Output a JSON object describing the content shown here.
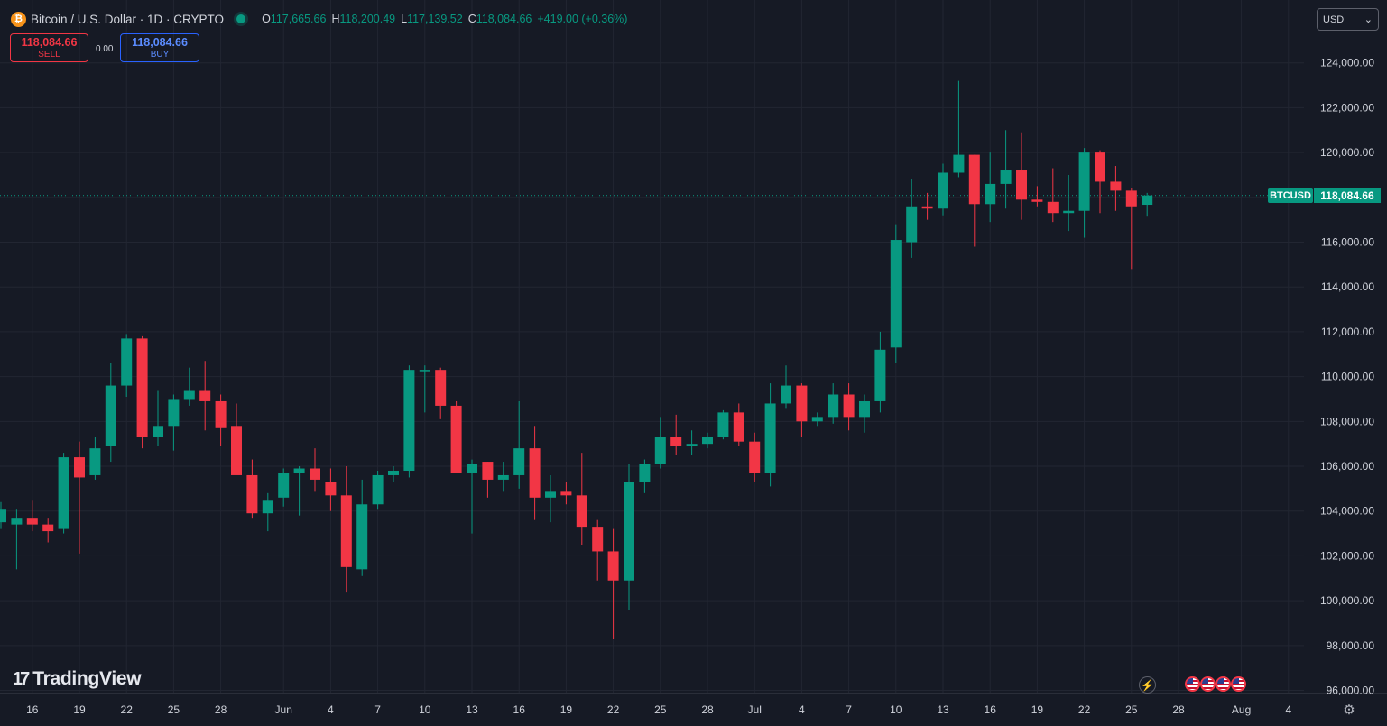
{
  "header": {
    "logo_glyph": "₿",
    "title": "Bitcoin / U.S. Dollar · 1D · CRYPTO",
    "ohlc": [
      {
        "key": "O",
        "value": "117,665.66"
      },
      {
        "key": "H",
        "value": "118,200.49"
      },
      {
        "key": "L",
        "value": "117,139.52"
      },
      {
        "key": "C",
        "value": "118,084.66"
      }
    ],
    "change": "+419.00 (+0.36%)"
  },
  "trade": {
    "sell_price": "118,084.66",
    "sell_label": "SELL",
    "spread": "0.00",
    "buy_price": "118,084.66",
    "buy_label": "BUY"
  },
  "currency_selector": {
    "value": "USD",
    "icon": "chevron-down-icon"
  },
  "price_tag": {
    "symbol": "BTCUSD",
    "price": "118,084.66"
  },
  "branding": {
    "logo_mark": "17",
    "logo_text": "TradingView"
  },
  "colors": {
    "up": "#089981",
    "down": "#f23645",
    "background": "#161a25",
    "grid": "#222632",
    "text": "#d1d4dc"
  },
  "chart_data": {
    "type": "candlestick",
    "y_ticks": [
      "96,000.00",
      "98,000.00",
      "100,000.00",
      "102,000.00",
      "104,000.00",
      "106,000.00",
      "108,000.00",
      "110,000.00",
      "112,000.00",
      "114,000.00",
      "116,000.00",
      "118,000.00",
      "120,000.00",
      "122,000.00",
      "124,000.00"
    ],
    "y_tick_values": [
      96000,
      98000,
      100000,
      102000,
      104000,
      106000,
      108000,
      110000,
      112000,
      114000,
      116000,
      118000,
      120000,
      122000,
      124000
    ],
    "ylim": [
      95900,
      125800
    ],
    "x_ticks": [
      {
        "label": "16",
        "day": "May 16"
      },
      {
        "label": "19",
        "day": "May 19"
      },
      {
        "label": "22",
        "day": "May 22"
      },
      {
        "label": "25",
        "day": "May 25"
      },
      {
        "label": "28",
        "day": "May 28"
      },
      {
        "label": "Jun",
        "day": "Jun 1"
      },
      {
        "label": "4",
        "day": "Jun 4"
      },
      {
        "label": "7",
        "day": "Jun 7"
      },
      {
        "label": "10",
        "day": "Jun 10"
      },
      {
        "label": "13",
        "day": "Jun 13"
      },
      {
        "label": "16",
        "day": "Jun 16"
      },
      {
        "label": "19",
        "day": "Jun 19"
      },
      {
        "label": "22",
        "day": "Jun 22"
      },
      {
        "label": "25",
        "day": "Jun 25"
      },
      {
        "label": "28",
        "day": "Jun 28"
      },
      {
        "label": "Jul",
        "day": "Jul 1"
      },
      {
        "label": "4",
        "day": "Jul 4"
      },
      {
        "label": "7",
        "day": "Jul 7"
      },
      {
        "label": "10",
        "day": "Jul 10"
      },
      {
        "label": "13",
        "day": "Jul 13"
      },
      {
        "label": "16",
        "day": "Jul 16"
      },
      {
        "label": "19",
        "day": "Jul 19"
      },
      {
        "label": "22",
        "day": "Jul 22"
      },
      {
        "label": "25",
        "day": "Jul 25"
      },
      {
        "label": "28",
        "day": "Jul 28"
      },
      {
        "label": "Aug",
        "day": "Aug 1"
      },
      {
        "label": "4",
        "day": "Aug 4"
      }
    ],
    "last_price": 118084.66,
    "candles": [
      {
        "date": "May 14",
        "o": 103500,
        "h": 104400,
        "l": 103200,
        "c": 104100
      },
      {
        "date": "May 15",
        "o": 103400,
        "h": 104100,
        "l": 101400,
        "c": 103700
      },
      {
        "date": "May 16",
        "o": 103700,
        "h": 104500,
        "l": 103100,
        "c": 103400
      },
      {
        "date": "May 17",
        "o": 103400,
        "h": 103700,
        "l": 102600,
        "c": 103100
      },
      {
        "date": "May 18",
        "o": 103200,
        "h": 106600,
        "l": 103000,
        "c": 106400
      },
      {
        "date": "May 19",
        "o": 106400,
        "h": 107100,
        "l": 102100,
        "c": 105500
      },
      {
        "date": "May 20",
        "o": 105600,
        "h": 107300,
        "l": 105400,
        "c": 106800
      },
      {
        "date": "May 21",
        "o": 106900,
        "h": 110600,
        "l": 106200,
        "c": 109600
      },
      {
        "date": "May 22",
        "o": 109600,
        "h": 111900,
        "l": 109100,
        "c": 111700
      },
      {
        "date": "May 23",
        "o": 111700,
        "h": 111800,
        "l": 106800,
        "c": 107300
      },
      {
        "date": "May 24",
        "o": 107300,
        "h": 109400,
        "l": 106900,
        "c": 107800
      },
      {
        "date": "May 25",
        "o": 107800,
        "h": 109200,
        "l": 106700,
        "c": 109000
      },
      {
        "date": "May 26",
        "o": 109000,
        "h": 110400,
        "l": 108700,
        "c": 109400
      },
      {
        "date": "May 27",
        "o": 109400,
        "h": 110700,
        "l": 107600,
        "c": 108900
      },
      {
        "date": "May 28",
        "o": 108900,
        "h": 109200,
        "l": 106900,
        "c": 107700
      },
      {
        "date": "May 29",
        "o": 107800,
        "h": 108800,
        "l": 105700,
        "c": 105600
      },
      {
        "date": "May 30",
        "o": 105600,
        "h": 106300,
        "l": 103700,
        "c": 103900
      },
      {
        "date": "May 31",
        "o": 103900,
        "h": 104800,
        "l": 103100,
        "c": 104500
      },
      {
        "date": "Jun 1",
        "o": 104600,
        "h": 105900,
        "l": 104200,
        "c": 105700
      },
      {
        "date": "Jun 2",
        "o": 105700,
        "h": 106000,
        "l": 103800,
        "c": 105900
      },
      {
        "date": "Jun 3",
        "o": 105900,
        "h": 106800,
        "l": 104900,
        "c": 105400
      },
      {
        "date": "Jun 4",
        "o": 105300,
        "h": 105900,
        "l": 104000,
        "c": 104700
      },
      {
        "date": "Jun 5",
        "o": 104700,
        "h": 106000,
        "l": 100400,
        "c": 101500
      },
      {
        "date": "Jun 6",
        "o": 101400,
        "h": 105400,
        "l": 101100,
        "c": 104300
      },
      {
        "date": "Jun 7",
        "o": 104300,
        "h": 105800,
        "l": 104100,
        "c": 105600
      },
      {
        "date": "Jun 8",
        "o": 105600,
        "h": 106000,
        "l": 105300,
        "c": 105800
      },
      {
        "date": "Jun 9",
        "o": 105800,
        "h": 110500,
        "l": 105500,
        "c": 110300
      },
      {
        "date": "Jun 10",
        "o": 110300,
        "h": 110500,
        "l": 108400,
        "c": 110300
      },
      {
        "date": "Jun 11",
        "o": 110300,
        "h": 110400,
        "l": 108100,
        "c": 108700
      },
      {
        "date": "Jun 12",
        "o": 108700,
        "h": 108900,
        "l": 105700,
        "c": 105700
      },
      {
        "date": "Jun 13",
        "o": 105700,
        "h": 106300,
        "l": 103000,
        "c": 106100
      },
      {
        "date": "Jun 14",
        "o": 106200,
        "h": 106200,
        "l": 104600,
        "c": 105400
      },
      {
        "date": "Jun 15",
        "o": 105400,
        "h": 106200,
        "l": 104900,
        "c": 105600
      },
      {
        "date": "Jun 16",
        "o": 105600,
        "h": 108900,
        "l": 105000,
        "c": 106800
      },
      {
        "date": "Jun 17",
        "o": 106800,
        "h": 107800,
        "l": 103600,
        "c": 104600
      },
      {
        "date": "Jun 18",
        "o": 104600,
        "h": 105600,
        "l": 103500,
        "c": 104900
      },
      {
        "date": "Jun 19",
        "o": 104900,
        "h": 105300,
        "l": 104300,
        "c": 104700
      },
      {
        "date": "Jun 20",
        "o": 104700,
        "h": 106600,
        "l": 102500,
        "c": 103300
      },
      {
        "date": "Jun 21",
        "o": 103300,
        "h": 103600,
        "l": 100900,
        "c": 102200
      },
      {
        "date": "Jun 22",
        "o": 102200,
        "h": 103200,
        "l": 98300,
        "c": 100900
      },
      {
        "date": "Jun 23",
        "o": 100900,
        "h": 106100,
        "l": 99600,
        "c": 105300
      },
      {
        "date": "Jun 24",
        "o": 105300,
        "h": 106300,
        "l": 104800,
        "c": 106100
      },
      {
        "date": "Jun 25",
        "o": 106100,
        "h": 108200,
        "l": 105900,
        "c": 107300
      },
      {
        "date": "Jun 26",
        "o": 107300,
        "h": 108300,
        "l": 106500,
        "c": 106900
      },
      {
        "date": "Jun 27",
        "o": 106900,
        "h": 107600,
        "l": 106500,
        "c": 107000
      },
      {
        "date": "Jun 28",
        "o": 107000,
        "h": 107500,
        "l": 106800,
        "c": 107300
      },
      {
        "date": "Jun 29",
        "o": 107300,
        "h": 108500,
        "l": 107200,
        "c": 108400
      },
      {
        "date": "Jun 30",
        "o": 108400,
        "h": 108800,
        "l": 106900,
        "c": 107100
      },
      {
        "date": "Jul 1",
        "o": 107100,
        "h": 107500,
        "l": 105300,
        "c": 105700
      },
      {
        "date": "Jul 2",
        "o": 105700,
        "h": 109700,
        "l": 105100,
        "c": 108800
      },
      {
        "date": "Jul 3",
        "o": 108800,
        "h": 110500,
        "l": 108600,
        "c": 109600
      },
      {
        "date": "Jul 4",
        "o": 109600,
        "h": 109700,
        "l": 107300,
        "c": 108000
      },
      {
        "date": "Jul 5",
        "o": 108000,
        "h": 108400,
        "l": 107800,
        "c": 108200
      },
      {
        "date": "Jul 6",
        "o": 108200,
        "h": 109700,
        "l": 107900,
        "c": 109200
      },
      {
        "date": "Jul 7",
        "o": 109200,
        "h": 109700,
        "l": 107600,
        "c": 108200
      },
      {
        "date": "Jul 8",
        "o": 108200,
        "h": 109200,
        "l": 107500,
        "c": 108900
      },
      {
        "date": "Jul 9",
        "o": 108900,
        "h": 112000,
        "l": 108400,
        "c": 111200
      },
      {
        "date": "Jul 10",
        "o": 111300,
        "h": 116800,
        "l": 110600,
        "c": 116100
      },
      {
        "date": "Jul 11",
        "o": 116000,
        "h": 118800,
        "l": 115300,
        "c": 117600
      },
      {
        "date": "Jul 12",
        "o": 117600,
        "h": 118200,
        "l": 117000,
        "c": 117500
      },
      {
        "date": "Jul 13",
        "o": 117500,
        "h": 119500,
        "l": 117200,
        "c": 119100
      },
      {
        "date": "Jul 14",
        "o": 119100,
        "h": 123200,
        "l": 118900,
        "c": 119900
      },
      {
        "date": "Jul 15",
        "o": 119900,
        "h": 119900,
        "l": 115800,
        "c": 117700
      },
      {
        "date": "Jul 16",
        "o": 117700,
        "h": 120000,
        "l": 116900,
        "c": 118600
      },
      {
        "date": "Jul 17",
        "o": 118600,
        "h": 121000,
        "l": 117500,
        "c": 119200
      },
      {
        "date": "Jul 18",
        "o": 119200,
        "h": 120900,
        "l": 117000,
        "c": 117900
      },
      {
        "date": "Jul 19",
        "o": 117900,
        "h": 118500,
        "l": 117600,
        "c": 117800
      },
      {
        "date": "Jul 20",
        "o": 117800,
        "h": 119300,
        "l": 116900,
        "c": 117300
      },
      {
        "date": "Jul 21",
        "o": 117300,
        "h": 119000,
        "l": 116500,
        "c": 117400
      },
      {
        "date": "Jul 22",
        "o": 117400,
        "h": 120200,
        "l": 116200,
        "c": 120000
      },
      {
        "date": "Jul 23",
        "o": 120000,
        "h": 120100,
        "l": 117300,
        "c": 118700
      },
      {
        "date": "Jul 24",
        "o": 118700,
        "h": 119400,
        "l": 117400,
        "c": 118300
      },
      {
        "date": "Jul 25",
        "o": 118300,
        "h": 118400,
        "l": 114800,
        "c": 117600
      },
      {
        "date": "Jul 26",
        "o": 117670,
        "h": 118200,
        "l": 117140,
        "c": 118085
      }
    ]
  }
}
